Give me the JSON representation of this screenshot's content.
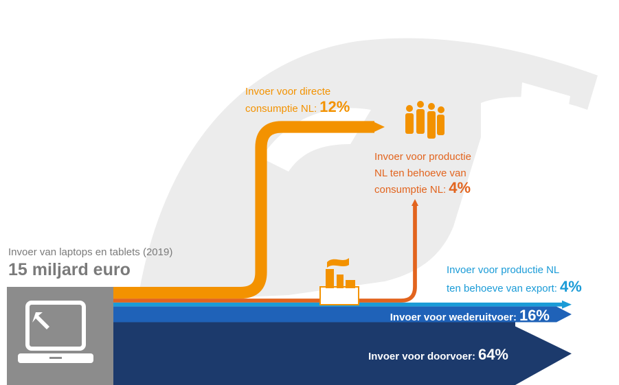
{
  "header": {
    "title": "Invoer van laptops en tablets (2019)",
    "total": "15 miljard euro"
  },
  "flows": [
    {
      "label_lines": [
        "Invoer voor directe",
        "consumptie NL:"
      ],
      "value": 12,
      "value_label": "12%",
      "color": "#f39200"
    },
    {
      "label_lines": [
        "Invoer voor productie",
        "NL ten behoeve van",
        "consumptie NL:"
      ],
      "value": 4,
      "value_label": "4%",
      "color": "#e2641e"
    },
    {
      "label_lines": [
        "Invoer voor productie NL",
        "ten behoeve van export:"
      ],
      "value": 4,
      "value_label": "4%",
      "color": "#1a9bd7"
    },
    {
      "label_lines": [
        "Invoer voor wederuitvoer:"
      ],
      "value": 16,
      "value_label": "16%",
      "color": "#1f62b8"
    },
    {
      "label_lines": [
        "Invoer voor doorvoer:"
      ],
      "value": 64,
      "value_label": "64%",
      "color": "#1c3a6c"
    }
  ]
}
